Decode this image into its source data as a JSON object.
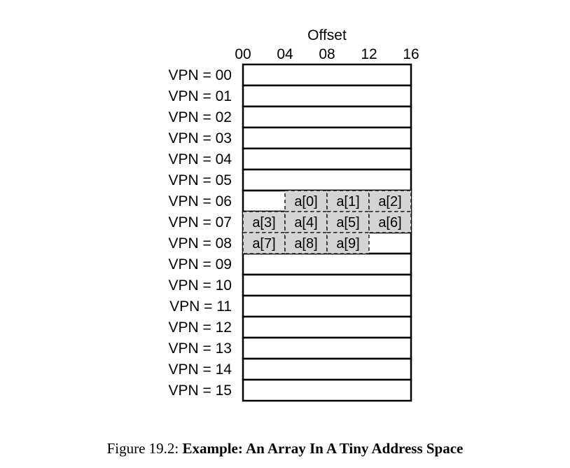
{
  "diagram": {
    "offset_title": "Offset",
    "offset_ticks": [
      "00",
      "04",
      "08",
      "12",
      "16"
    ],
    "row_labels": [
      "VPN = 00",
      "VPN = 01",
      "VPN = 02",
      "VPN = 03",
      "VPN = 04",
      "VPN = 05",
      "VPN = 06",
      "VPN = 07",
      "VPN = 08",
      "VPN = 09",
      "VPN = 10",
      "VPN = 11",
      "VPN = 12",
      "VPN = 13",
      "VPN = 14",
      "VPN = 15"
    ],
    "array_cells": [
      {
        "label": "a[0]",
        "vpn": 6,
        "offset": 4
      },
      {
        "label": "a[1]",
        "vpn": 6,
        "offset": 8
      },
      {
        "label": "a[2]",
        "vpn": 6,
        "offset": 12
      },
      {
        "label": "a[3]",
        "vpn": 7,
        "offset": 0
      },
      {
        "label": "a[4]",
        "vpn": 7,
        "offset": 4
      },
      {
        "label": "a[5]",
        "vpn": 7,
        "offset": 8
      },
      {
        "label": "a[6]",
        "vpn": 7,
        "offset": 12
      },
      {
        "label": "a[7]",
        "vpn": 8,
        "offset": 0
      },
      {
        "label": "a[8]",
        "vpn": 8,
        "offset": 4
      },
      {
        "label": "a[9]",
        "vpn": 8,
        "offset": 8
      }
    ],
    "colors": {
      "cell_fill": "#d4d4d4",
      "line": "#000000",
      "page_fill": "#ffffff"
    }
  },
  "caption": {
    "prefix": "Figure 19.2: ",
    "title": "Example: An Array In A Tiny Address Space"
  }
}
